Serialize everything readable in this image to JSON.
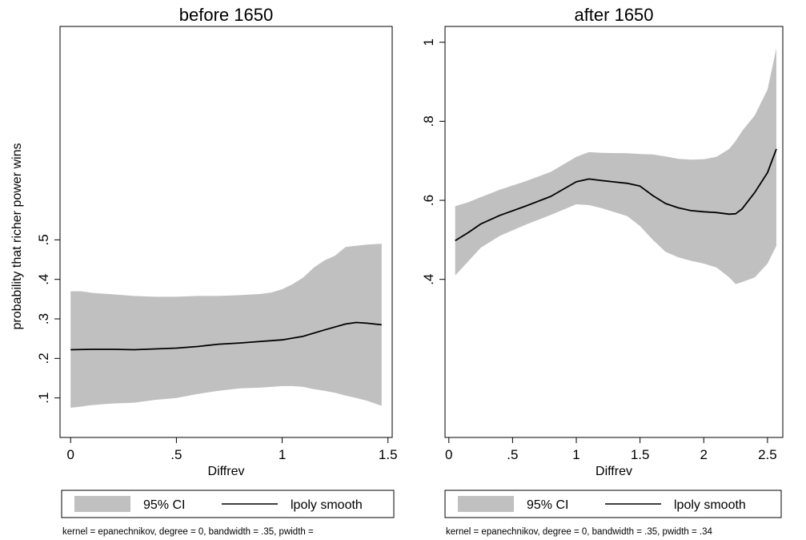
{
  "figure": {
    "shared_ylabel": "probability that richer power wins",
    "ci_color": "#c0c0c0",
    "line_color": "#000000"
  },
  "chart_data": [
    {
      "type": "area",
      "title": "before 1650",
      "xlabel": "Diffrev",
      "ylabel": "probability that richer power wins",
      "xlim": [
        -0.05,
        1.52
      ],
      "ylim": [
        0.0,
        1.04
      ],
      "xticks": [
        0,
        0.5,
        1,
        1.5
      ],
      "xtick_labels": [
        "0",
        ".5",
        "1",
        "1.5"
      ],
      "yticks": [
        0.1,
        0.2,
        0.3,
        0.4,
        0.5
      ],
      "ytick_labels": [
        ".1",
        ".2",
        ".3",
        ".4",
        ".5"
      ],
      "grid": false,
      "legend": {
        "items": [
          "95% CI",
          "lpoly smooth"
        ],
        "position": "bottom"
      },
      "note": "kernel = epanechnikov, degree = 0, bandwidth = .35, pwidth =",
      "series": [
        {
          "name": "95% CI",
          "kind": "band",
          "x": [
            0.0,
            0.05,
            0.1,
            0.2,
            0.3,
            0.4,
            0.5,
            0.6,
            0.7,
            0.8,
            0.9,
            0.95,
            1.0,
            1.05,
            1.1,
            1.15,
            1.2,
            1.25,
            1.3,
            1.35,
            1.4,
            1.47
          ],
          "upper": [
            0.37,
            0.37,
            0.366,
            0.362,
            0.358,
            0.356,
            0.356,
            0.358,
            0.358,
            0.36,
            0.363,
            0.367,
            0.375,
            0.388,
            0.405,
            0.43,
            0.448,
            0.46,
            0.482,
            0.485,
            0.488,
            0.49
          ],
          "lower": [
            0.075,
            0.078,
            0.082,
            0.086,
            0.088,
            0.095,
            0.1,
            0.11,
            0.118,
            0.124,
            0.126,
            0.128,
            0.13,
            0.13,
            0.128,
            0.122,
            0.118,
            0.113,
            0.106,
            0.1,
            0.093,
            0.08
          ]
        },
        {
          "name": "lpoly smooth",
          "kind": "line",
          "x": [
            0.0,
            0.1,
            0.2,
            0.3,
            0.4,
            0.5,
            0.6,
            0.7,
            0.8,
            0.9,
            1.0,
            1.1,
            1.2,
            1.3,
            1.35,
            1.4,
            1.47
          ],
          "y": [
            0.222,
            0.223,
            0.223,
            0.222,
            0.224,
            0.226,
            0.23,
            0.236,
            0.239,
            0.243,
            0.247,
            0.256,
            0.272,
            0.287,
            0.291,
            0.289,
            0.285
          ]
        }
      ]
    },
    {
      "type": "area",
      "title": "after 1650",
      "xlabel": "Diffrev",
      "ylabel": "",
      "xlim": [
        -0.03,
        2.62
      ],
      "ylim": [
        0.0,
        1.04
      ],
      "xticks": [
        0,
        0.5,
        1,
        1.5,
        2,
        2.5
      ],
      "xtick_labels": [
        "0",
        ".5",
        "1",
        "1.5",
        "2",
        "2.5"
      ],
      "yticks": [
        0.4,
        0.6,
        0.8,
        1.0
      ],
      "ytick_labels": [
        ".4",
        ".6",
        ".8",
        "1"
      ],
      "grid": false,
      "legend": {
        "items": [
          "95% CI",
          "lpoly smooth"
        ],
        "position": "bottom"
      },
      "note": "kernel = epanechnikov, degree = 0, bandwidth = .35, pwidth = .34",
      "series": [
        {
          "name": "95% CI",
          "kind": "band",
          "x": [
            0.05,
            0.15,
            0.25,
            0.4,
            0.6,
            0.8,
            1.0,
            1.1,
            1.2,
            1.4,
            1.5,
            1.6,
            1.7,
            1.8,
            1.9,
            2.0,
            2.1,
            2.2,
            2.25,
            2.3,
            2.4,
            2.5,
            2.57
          ],
          "upper": [
            0.585,
            0.595,
            0.608,
            0.627,
            0.648,
            0.672,
            0.71,
            0.722,
            0.72,
            0.719,
            0.717,
            0.716,
            0.711,
            0.705,
            0.703,
            0.704,
            0.71,
            0.73,
            0.75,
            0.775,
            0.815,
            0.88,
            0.985
          ],
          "lower": [
            0.41,
            0.445,
            0.48,
            0.51,
            0.538,
            0.563,
            0.59,
            0.588,
            0.58,
            0.56,
            0.535,
            0.5,
            0.47,
            0.456,
            0.447,
            0.44,
            0.43,
            0.405,
            0.388,
            0.393,
            0.405,
            0.44,
            0.485
          ]
        },
        {
          "name": "lpoly smooth",
          "kind": "line",
          "x": [
            0.05,
            0.15,
            0.25,
            0.4,
            0.6,
            0.8,
            1.0,
            1.1,
            1.2,
            1.4,
            1.5,
            1.6,
            1.7,
            1.8,
            1.9,
            2.0,
            2.1,
            2.2,
            2.25,
            2.3,
            2.4,
            2.5,
            2.57
          ],
          "y": [
            0.498,
            0.518,
            0.54,
            0.562,
            0.585,
            0.61,
            0.647,
            0.654,
            0.65,
            0.643,
            0.636,
            0.612,
            0.592,
            0.581,
            0.574,
            0.571,
            0.569,
            0.565,
            0.566,
            0.578,
            0.62,
            0.67,
            0.73
          ]
        }
      ]
    }
  ]
}
